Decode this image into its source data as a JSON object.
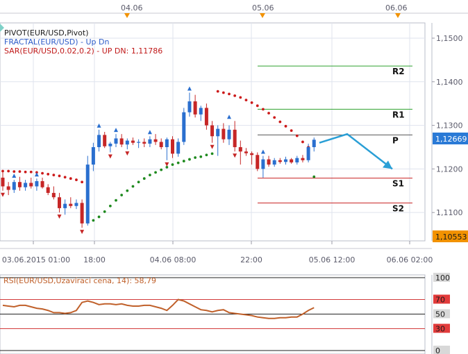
{
  "colors": {
    "bull": "#2a6fcf",
    "bear": "#c62626",
    "fractal_up": "#2a6fcf",
    "fractal_dn": "#c62626",
    "sar_up": "#1f8a1f",
    "sar_dn": "#cc1a1a",
    "level_green": "#2ca02c",
    "level_red": "#c82020",
    "price_box": "#2a7ad6",
    "last_box": "#f29200",
    "rsi_line": "#c0602a",
    "forecast": "#2a9fd6"
  },
  "top_dates": [
    "04.06",
    "05.06",
    "06.06"
  ],
  "legend": {
    "pivot": "PIVOT(EUR/USD,Pivot)",
    "fractal": "FRACTAL(EUR/USD) -  Up  Dn",
    "sar": "SAR(EUR/USD,0.02,0.2) -  UP  DN: 1,11786"
  },
  "rsi": {
    "label": "RSI(EUR/USD,Uzavírací cena, 14): 58,79",
    "axis_labels": [
      "100",
      "70",
      "50",
      "30",
      "0"
    ],
    "levels": [
      100,
      70,
      50,
      30,
      0
    ]
  },
  "chart_data": {
    "type": "candlestick",
    "x_ticks": [
      "03.06.2015 01:00",
      "18:00",
      "04.06 08:00",
      "22:00",
      "05.06 12:00",
      "06.06 02:00"
    ],
    "y_ticks": [
      "1,1500",
      "1,1400",
      "1,1300",
      "1,1200",
      "1,1100"
    ],
    "ylim": [
      1.1035,
      1.1535
    ],
    "current_price": "1,12669",
    "last_price": "1,10553",
    "pivot_levels": [
      {
        "name": "R2",
        "value": 1.1436
      },
      {
        "name": "R1",
        "value": 1.1337
      },
      {
        "name": "P",
        "value": 1.1278
      },
      {
        "name": "S1",
        "value": 1.1179
      },
      {
        "name": "S2",
        "value": 1.1122
      }
    ],
    "candles": [
      [
        1.118,
        1.1192,
        1.115,
        1.116
      ],
      [
        1.116,
        1.117,
        1.114,
        1.1152
      ],
      [
        1.1152,
        1.1175,
        1.1145,
        1.117
      ],
      [
        1.117,
        1.1182,
        1.115,
        1.1158
      ],
      [
        1.1158,
        1.1175,
        1.115,
        1.1168
      ],
      [
        1.1168,
        1.118,
        1.1155,
        1.116
      ],
      [
        1.116,
        1.1178,
        1.115,
        1.1172
      ],
      [
        1.1172,
        1.118,
        1.1155,
        1.1158
      ],
      [
        1.1158,
        1.1165,
        1.114,
        1.1145
      ],
      [
        1.1145,
        1.116,
        1.113,
        1.1135
      ],
      [
        1.1135,
        1.1145,
        1.11,
        1.111
      ],
      [
        1.111,
        1.113,
        1.1095,
        1.112
      ],
      [
        1.112,
        1.1135,
        1.111,
        1.1115
      ],
      [
        1.1115,
        1.113,
        1.1108,
        1.1122
      ],
      [
        1.1122,
        1.113,
        1.1065,
        1.1075
      ],
      [
        1.1075,
        1.123,
        1.107,
        1.121
      ],
      [
        1.121,
        1.126,
        1.1195,
        1.125
      ],
      [
        1.125,
        1.129,
        1.124,
        1.1278
      ],
      [
        1.1278,
        1.1285,
        1.1248,
        1.1252
      ],
      [
        1.1252,
        1.1262,
        1.1238,
        1.1258
      ],
      [
        1.1258,
        1.128,
        1.125,
        1.127
      ],
      [
        1.127,
        1.128,
        1.125,
        1.1256
      ],
      [
        1.1256,
        1.127,
        1.1245,
        1.1265
      ],
      [
        1.1265,
        1.1272,
        1.1255,
        1.126
      ],
      [
        1.126,
        1.1268,
        1.1248,
        1.1262
      ],
      [
        1.1262,
        1.127,
        1.125,
        1.1258
      ],
      [
        1.1258,
        1.1275,
        1.125,
        1.1268
      ],
      [
        1.1268,
        1.128,
        1.1255,
        1.1262
      ],
      [
        1.1262,
        1.127,
        1.1245,
        1.125
      ],
      [
        1.125,
        1.1272,
        1.122,
        1.1268
      ],
      [
        1.1268,
        1.1275,
        1.1225,
        1.1235
      ],
      [
        1.1235,
        1.127,
        1.1228,
        1.1262
      ],
      [
        1.1262,
        1.134,
        1.1255,
        1.133
      ],
      [
        1.133,
        1.1375,
        1.132,
        1.1355
      ],
      [
        1.1355,
        1.137,
        1.1318,
        1.1325
      ],
      [
        1.1325,
        1.1345,
        1.131,
        1.134
      ],
      [
        1.134,
        1.135,
        1.129,
        1.13
      ],
      [
        1.13,
        1.131,
        1.126,
        1.1275
      ],
      [
        1.1275,
        1.13,
        1.123,
        1.1292
      ],
      [
        1.1292,
        1.1305,
        1.126,
        1.1268
      ],
      [
        1.1268,
        1.13,
        1.1255,
        1.129
      ],
      [
        1.129,
        1.131,
        1.124,
        1.125
      ],
      [
        1.125,
        1.1265,
        1.121,
        1.124
      ],
      [
        1.124,
        1.1248,
        1.123,
        1.1236
      ],
      [
        1.1236,
        1.124,
        1.121,
        1.1232
      ],
      [
        1.1232,
        1.1238,
        1.1195,
        1.12
      ],
      [
        1.12,
        1.123,
        1.118,
        1.1222
      ],
      [
        1.1222,
        1.123,
        1.1205,
        1.121
      ],
      [
        1.121,
        1.1225,
        1.1205,
        1.122
      ],
      [
        1.122,
        1.1225,
        1.1212,
        1.1216
      ],
      [
        1.1216,
        1.1228,
        1.121,
        1.1222
      ],
      [
        1.1222,
        1.1225,
        1.1212,
        1.1215
      ],
      [
        1.1215,
        1.123,
        1.121,
        1.1225
      ],
      [
        1.1225,
        1.1232,
        1.1215,
        1.122
      ],
      [
        1.122,
        1.1258,
        1.1215,
        1.125
      ],
      [
        1.125,
        1.1272,
        1.124,
        1.1267
      ]
    ],
    "sar_up": [
      {
        "i": 15,
        "v": 1.1078
      },
      {
        "i": 16,
        "v": 1.1082
      },
      {
        "i": 17,
        "v": 1.109
      },
      {
        "i": 18,
        "v": 1.1102
      },
      {
        "i": 19,
        "v": 1.1115
      },
      {
        "i": 20,
        "v": 1.1128
      },
      {
        "i": 21,
        "v": 1.114
      },
      {
        "i": 22,
        "v": 1.115
      },
      {
        "i": 23,
        "v": 1.116
      },
      {
        "i": 24,
        "v": 1.117
      },
      {
        "i": 25,
        "v": 1.1178
      },
      {
        "i": 26,
        "v": 1.1186
      },
      {
        "i": 27,
        "v": 1.1192
      },
      {
        "i": 28,
        "v": 1.1198
      },
      {
        "i": 29,
        "v": 1.1204
      },
      {
        "i": 30,
        "v": 1.121
      },
      {
        "i": 31,
        "v": 1.1214
      },
      {
        "i": 32,
        "v": 1.1218
      },
      {
        "i": 33,
        "v": 1.1222
      },
      {
        "i": 34,
        "v": 1.1226
      },
      {
        "i": 35,
        "v": 1.1228
      },
      {
        "i": 36,
        "v": 1.1232
      },
      {
        "i": 37,
        "v": 1.1235
      },
      {
        "i": 55,
        "v": 1.1182
      }
    ],
    "sar_dn": [
      {
        "i": 0,
        "v": 1.1195
      },
      {
        "i": 1,
        "v": 1.1195
      },
      {
        "i": 2,
        "v": 1.1194
      },
      {
        "i": 3,
        "v": 1.1194
      },
      {
        "i": 4,
        "v": 1.1193
      },
      {
        "i": 5,
        "v": 1.1193
      },
      {
        "i": 6,
        "v": 1.1192
      },
      {
        "i": 7,
        "v": 1.119
      },
      {
        "i": 8,
        "v": 1.1188
      },
      {
        "i": 9,
        "v": 1.1186
      },
      {
        "i": 10,
        "v": 1.1184
      },
      {
        "i": 11,
        "v": 1.1181
      },
      {
        "i": 12,
        "v": 1.1178
      },
      {
        "i": 13,
        "v": 1.1175
      },
      {
        "i": 14,
        "v": 1.117
      },
      {
        "i": 38,
        "v": 1.1378
      },
      {
        "i": 39,
        "v": 1.1375
      },
      {
        "i": 40,
        "v": 1.1372
      },
      {
        "i": 41,
        "v": 1.1368
      },
      {
        "i": 42,
        "v": 1.1364
      },
      {
        "i": 43,
        "v": 1.1358
      },
      {
        "i": 44,
        "v": 1.1352
      },
      {
        "i": 45,
        "v": 1.1345
      },
      {
        "i": 46,
        "v": 1.1337
      },
      {
        "i": 47,
        "v": 1.1328
      },
      {
        "i": 48,
        "v": 1.1318
      },
      {
        "i": 49,
        "v": 1.1308
      },
      {
        "i": 50,
        "v": 1.1298
      },
      {
        "i": 51,
        "v": 1.1288
      },
      {
        "i": 52,
        "v": 1.1276
      },
      {
        "i": 53,
        "v": 1.1262
      },
      {
        "i": 54,
        "v": 1.125
      }
    ],
    "fractals_up": [
      {
        "i": 2,
        "v": 1.1175
      },
      {
        "i": 6,
        "v": 1.1178
      },
      {
        "i": 17,
        "v": 1.129
      },
      {
        "i": 20,
        "v": 1.128
      },
      {
        "i": 26,
        "v": 1.1275
      },
      {
        "i": 33,
        "v": 1.1375
      },
      {
        "i": 40,
        "v": 1.131
      },
      {
        "i": 46,
        "v": 1.123
      }
    ],
    "fractals_dn": [
      {
        "i": 0,
        "v": 1.115
      },
      {
        "i": 10,
        "v": 1.11
      },
      {
        "i": 14,
        "v": 1.1065
      },
      {
        "i": 19,
        "v": 1.1238
      },
      {
        "i": 22,
        "v": 1.1245
      },
      {
        "i": 29,
        "v": 1.122
      },
      {
        "i": 37,
        "v": 1.126
      },
      {
        "i": 41,
        "v": 1.124
      }
    ],
    "forecast": [
      [
        1.126,
        1.128
      ],
      [
        1.128,
        1.12
      ]
    ],
    "rsi_values": [
      62,
      61,
      60,
      62,
      62,
      60,
      58,
      57,
      55,
      52,
      52,
      51,
      52,
      55,
      66,
      68,
      66,
      63,
      64,
      64,
      63,
      64,
      62,
      61,
      61,
      62,
      62,
      60,
      58,
      55,
      62,
      70,
      68,
      64,
      60,
      56,
      55,
      53,
      55,
      56,
      52,
      51,
      50,
      49,
      48,
      46,
      45,
      44,
      44,
      45,
      45,
      46,
      46,
      50,
      55,
      58.79
    ]
  }
}
